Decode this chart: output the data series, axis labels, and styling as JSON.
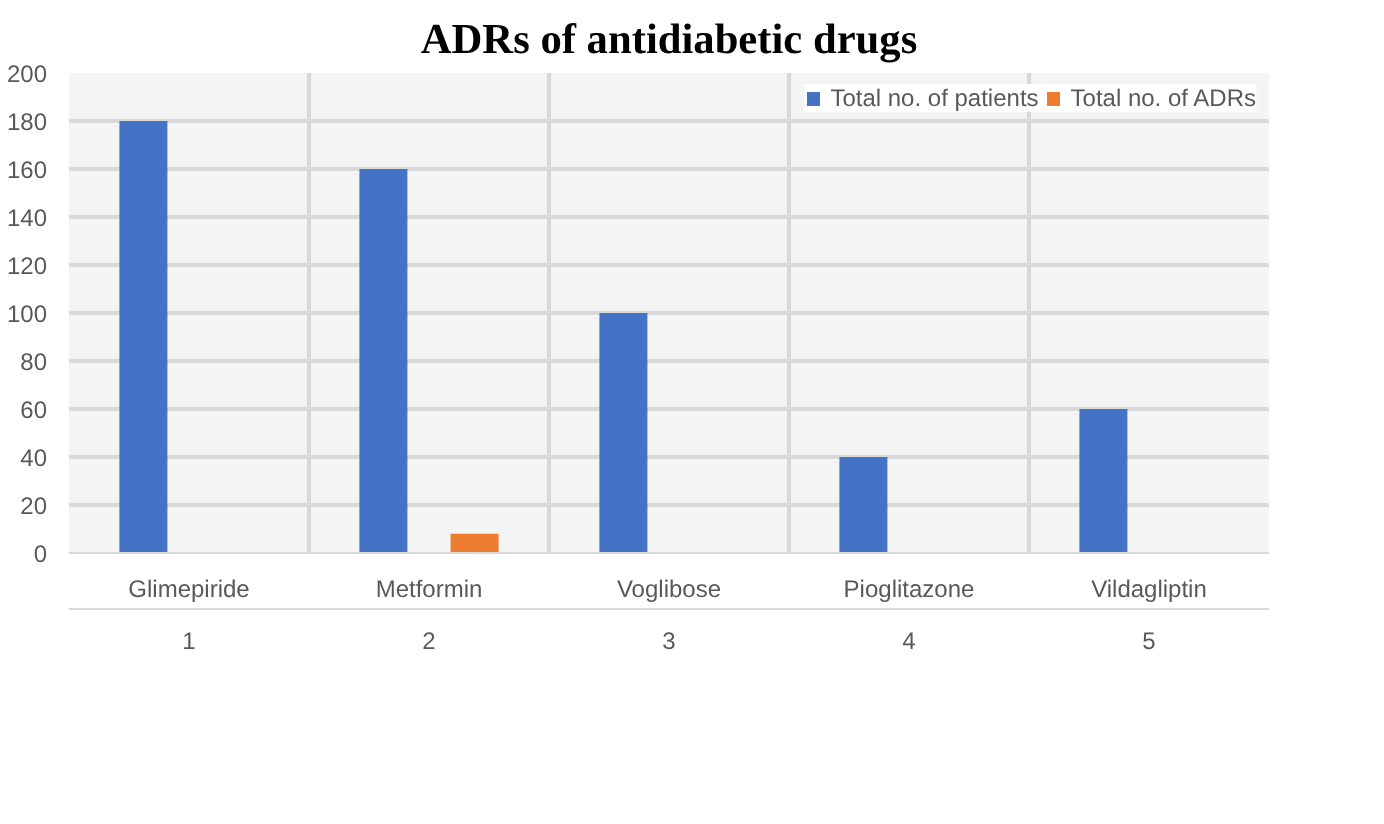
{
  "chart_data": {
    "type": "bar",
    "title": "ADRs of antidiabetic drugs",
    "categories": [
      "Glimepiride\n1",
      "Metformin\n2",
      "Voglibose\n3",
      "Pioglitazone\n4",
      "Vildagliptin\n5"
    ],
    "series": [
      {
        "name": "Total no. of patients",
        "color": "#4472c4",
        "values": [
          180,
          160,
          100,
          40,
          60
        ]
      },
      {
        "name": "Total no. of ADRs",
        "color": "#ed7d31",
        "values": [
          0,
          8,
          0,
          0,
          0
        ]
      }
    ],
    "ylim": [
      0,
      200
    ],
    "yticks": [
      0,
      20,
      40,
      60,
      80,
      100,
      120,
      140,
      160,
      180,
      200
    ],
    "grid": true,
    "legend": "top right"
  }
}
